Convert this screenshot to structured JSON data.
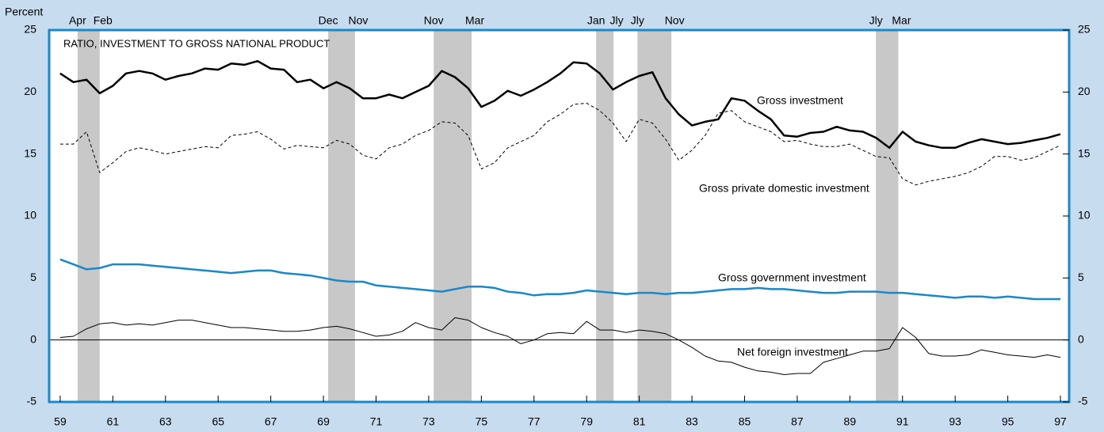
{
  "chart_data": {
    "type": "line",
    "title": "RATIO, INVESTMENT TO GROSS NATIONAL PRODUCT",
    "y_label": "Percent",
    "x": [
      1959,
      1959.5,
      1960,
      1960.5,
      1961,
      1961.5,
      1962,
      1962.5,
      1963,
      1963.5,
      1964,
      1964.5,
      1965,
      1965.5,
      1966,
      1966.5,
      1967,
      1967.5,
      1968,
      1968.5,
      1969,
      1969.5,
      1970,
      1970.5,
      1971,
      1971.5,
      1972,
      1972.5,
      1973,
      1973.5,
      1974,
      1974.5,
      1975,
      1975.5,
      1976,
      1976.5,
      1977,
      1977.5,
      1978,
      1978.5,
      1979,
      1979.5,
      1980,
      1980.5,
      1981,
      1981.5,
      1982,
      1982.5,
      1983,
      1983.5,
      1984,
      1984.5,
      1985,
      1985.5,
      1986,
      1986.5,
      1987,
      1987.5,
      1988,
      1988.5,
      1989,
      1989.5,
      1990,
      1990.5,
      1991,
      1991.5,
      1992,
      1992.5,
      1993,
      1993.5,
      1994,
      1994.5,
      1995,
      1995.5,
      1996,
      1996.5,
      1997
    ],
    "series": [
      {
        "name": "Gross investment",
        "color": "#000000",
        "style": "solid",
        "width": 2.5,
        "values": [
          21.5,
          20.8,
          21.0,
          19.9,
          20.5,
          21.5,
          21.7,
          21.5,
          21.0,
          21.3,
          21.5,
          21.9,
          21.8,
          22.3,
          22.2,
          22.5,
          21.9,
          21.8,
          20.8,
          21.0,
          20.3,
          20.8,
          20.3,
          19.5,
          19.5,
          19.8,
          19.5,
          20.0,
          20.5,
          21.7,
          21.2,
          20.3,
          18.8,
          19.3,
          20.1,
          19.7,
          20.2,
          20.8,
          21.5,
          22.4,
          22.3,
          21.5,
          20.2,
          20.8,
          21.3,
          21.6,
          19.5,
          18.2,
          17.3,
          17.6,
          17.8,
          19.5,
          19.3,
          18.5,
          17.8,
          16.5,
          16.4,
          16.7,
          16.8,
          17.2,
          16.9,
          16.8,
          16.3,
          15.5,
          16.8,
          16.0,
          15.7,
          15.5,
          15.5,
          15.9,
          16.2,
          16.0,
          15.8,
          15.9,
          16.1,
          16.3,
          16.6
        ]
      },
      {
        "name": "Gross private domestic investment",
        "color": "#000000",
        "style": "dashed",
        "width": 1,
        "values": [
          15.8,
          15.8,
          16.8,
          13.5,
          14.3,
          15.2,
          15.5,
          15.3,
          15.0,
          15.2,
          15.4,
          15.6,
          15.5,
          16.5,
          16.6,
          16.8,
          16.2,
          15.4,
          15.7,
          15.6,
          15.5,
          16.1,
          15.8,
          14.9,
          14.6,
          15.5,
          15.8,
          16.5,
          16.9,
          17.6,
          17.5,
          16.5,
          13.8,
          14.3,
          15.5,
          16.0,
          16.5,
          17.6,
          18.2,
          19.0,
          19.1,
          18.5,
          17.5,
          16.0,
          17.8,
          17.5,
          16.2,
          14.5,
          15.3,
          16.5,
          18.3,
          18.5,
          17.6,
          17.2,
          16.8,
          16.0,
          16.1,
          15.8,
          15.6,
          15.6,
          15.8,
          15.3,
          14.8,
          14.7,
          13.0,
          12.5,
          12.8,
          13.0,
          13.2,
          13.5,
          14.0,
          14.8,
          14.8,
          14.5,
          14.7,
          15.2,
          15.7
        ]
      },
      {
        "name": "Gross government investment",
        "color": "#1a88c9",
        "style": "solid",
        "width": 2.5,
        "values": [
          6.5,
          6.1,
          5.7,
          5.8,
          6.1,
          6.1,
          6.1,
          6.0,
          5.9,
          5.8,
          5.7,
          5.6,
          5.5,
          5.4,
          5.5,
          5.6,
          5.6,
          5.4,
          5.3,
          5.2,
          5.0,
          4.8,
          4.7,
          4.7,
          4.4,
          4.3,
          4.2,
          4.1,
          4.0,
          3.9,
          4.1,
          4.3,
          4.3,
          4.2,
          3.9,
          3.8,
          3.6,
          3.7,
          3.7,
          3.8,
          4.0,
          3.9,
          3.8,
          3.7,
          3.8,
          3.8,
          3.7,
          3.8,
          3.8,
          3.9,
          4.0,
          4.1,
          4.1,
          4.2,
          4.1,
          4.1,
          4.0,
          3.9,
          3.8,
          3.8,
          3.9,
          3.9,
          3.9,
          3.8,
          3.8,
          3.7,
          3.6,
          3.5,
          3.4,
          3.5,
          3.5,
          3.4,
          3.5,
          3.4,
          3.3,
          3.3,
          3.3
        ]
      },
      {
        "name": "Net foreign investment",
        "color": "#000000",
        "style": "solid",
        "width": 1,
        "values": [
          0.2,
          0.3,
          0.9,
          1.3,
          1.4,
          1.2,
          1.3,
          1.2,
          1.4,
          1.6,
          1.6,
          1.4,
          1.2,
          1.0,
          1.0,
          0.9,
          0.8,
          0.7,
          0.7,
          0.8,
          1.0,
          1.1,
          0.9,
          0.6,
          0.3,
          0.4,
          0.7,
          1.4,
          1.0,
          0.8,
          1.8,
          1.6,
          1.0,
          0.6,
          0.3,
          -0.3,
          0.0,
          0.5,
          0.6,
          0.5,
          1.5,
          0.8,
          0.8,
          0.6,
          0.8,
          0.7,
          0.5,
          0.0,
          -0.6,
          -1.3,
          -1.7,
          -1.8,
          -2.2,
          -2.5,
          -2.6,
          -2.8,
          -2.7,
          -2.7,
          -1.8,
          -1.5,
          -1.2,
          -0.9,
          -0.9,
          -0.7,
          1.0,
          0.2,
          -1.1,
          -1.3,
          -1.3,
          -1.2,
          -0.8,
          -1.0,
          -1.2,
          -1.3,
          -1.4,
          -1.2,
          -1.4
        ]
      }
    ],
    "recessions": [
      {
        "start": 1959.66,
        "end": 1960.5,
        "labels": [
          "Apr",
          "Feb"
        ]
      },
      {
        "start": 1969.18,
        "end": 1970.2,
        "labels": [
          "Dec",
          "Nov"
        ]
      },
      {
        "start": 1973.19,
        "end": 1974.63,
        "labels": [
          "Nov",
          "Mar"
        ]
      },
      {
        "start": 1979.36,
        "end": 1980.02,
        "labels": [
          "Jan",
          "Jly"
        ]
      },
      {
        "start": 1980.93,
        "end": 1982.22,
        "labels": [
          "Jly",
          "Nov"
        ]
      },
      {
        "start": 1989.99,
        "end": 1990.84,
        "labels": [
          "Jly",
          "Mar"
        ]
      }
    ],
    "xlim": [
      1958.58,
      1997.33
    ],
    "ylim": [
      -5,
      25
    ],
    "yticks": [
      -5,
      0,
      5,
      10,
      15,
      20,
      25
    ],
    "xticks": [
      {
        "value": 1959,
        "label": "59"
      },
      {
        "value": 1961,
        "label": "61"
      },
      {
        "value": 1963,
        "label": "63"
      },
      {
        "value": 1965,
        "label": "65"
      },
      {
        "value": 1967,
        "label": "67"
      },
      {
        "value": 1969,
        "label": "69"
      },
      {
        "value": 1971,
        "label": "71"
      },
      {
        "value": 1973,
        "label": "73"
      },
      {
        "value": 1975,
        "label": "75"
      },
      {
        "value": 1977,
        "label": "77"
      },
      {
        "value": 1979,
        "label": "79"
      },
      {
        "value": 1981,
        "label": "81"
      },
      {
        "value": 1983,
        "label": "83"
      },
      {
        "value": 1985,
        "label": "85"
      },
      {
        "value": 1987,
        "label": "87"
      },
      {
        "value": 1989,
        "label": "89"
      },
      {
        "value": 1991,
        "label": "91"
      },
      {
        "value": 1993,
        "label": "93"
      },
      {
        "value": 1995,
        "label": "95"
      },
      {
        "value": 1997,
        "label": "97"
      }
    ]
  }
}
